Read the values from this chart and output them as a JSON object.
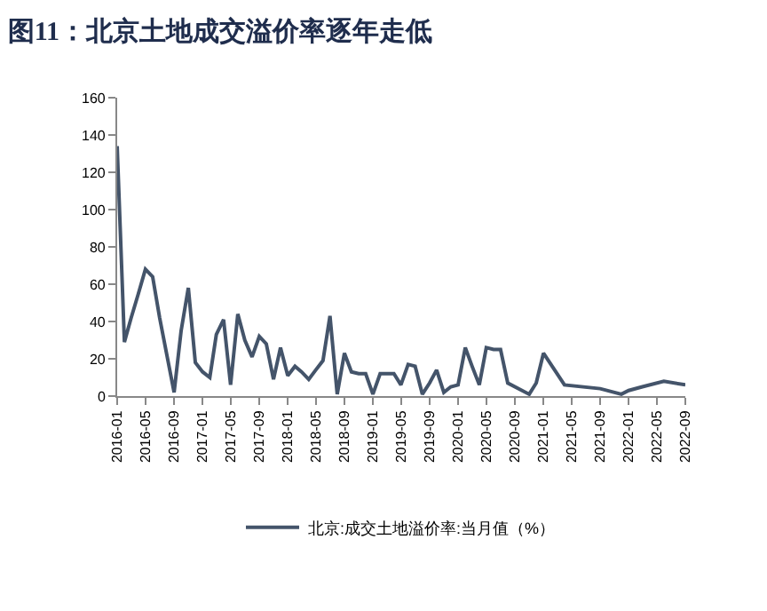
{
  "chart_data": {
    "type": "line",
    "title": "图11：北京土地成交溢价率逐年走低",
    "x": [
      "2016-01",
      "2016-02",
      "2016-03",
      "2016-04",
      "2016-05",
      "2016-06",
      "2016-07",
      "2016-08",
      "2016-09",
      "2016-10",
      "2016-11",
      "2016-12",
      "2017-01",
      "2017-02",
      "2017-03",
      "2017-04",
      "2017-05",
      "2017-06",
      "2017-07",
      "2017-08",
      "2017-09",
      "2017-10",
      "2017-11",
      "2017-12",
      "2018-01",
      "2018-02",
      "2018-03",
      "2018-04",
      "2018-05",
      "2018-06",
      "2018-07",
      "2018-08",
      "2018-09",
      "2018-10",
      "2018-11",
      "2018-12",
      "2019-01",
      "2019-02",
      "2019-03",
      "2019-04",
      "2019-05",
      "2019-06",
      "2019-07",
      "2019-08",
      "2019-09",
      "2019-10",
      "2019-11",
      "2019-12",
      "2020-01",
      "2020-02",
      "2020-03",
      "2020-04",
      "2020-05",
      "2020-06",
      "2020-07",
      "2020-08",
      "2020-11",
      "2020-12",
      "2021-01",
      "2021-04",
      "2021-09",
      "2021-12",
      "2022-01",
      "2022-03",
      "2022-06",
      "2022-09"
    ],
    "series": [
      {
        "name": "北京:成交土地溢价率:当月值（%）",
        "color": "#44546a",
        "values": [
          134,
          29,
          42,
          55,
          68,
          64,
          42,
          22,
          2,
          35,
          58,
          18,
          13,
          10,
          33,
          41,
          6,
          44,
          30,
          21,
          32,
          28,
          9,
          26,
          11,
          16,
          13,
          9,
          14,
          19,
          43,
          1,
          23,
          13,
          12,
          12,
          1,
          12,
          12,
          12,
          6,
          17,
          16,
          1,
          7,
          14,
          2,
          5,
          6,
          26,
          16,
          6,
          26,
          25,
          25,
          7,
          1,
          7,
          23,
          6,
          4,
          1,
          3,
          5,
          8,
          6
        ]
      }
    ],
    "xlim": [
      "2016-01",
      "2022-09"
    ],
    "xticks": [
      "2016-01",
      "2016-05",
      "2016-09",
      "2017-01",
      "2017-05",
      "2017-09",
      "2018-01",
      "2018-05",
      "2018-09",
      "2019-01",
      "2019-05",
      "2019-09",
      "2020-01",
      "2020-05",
      "2020-09",
      "2021-01",
      "2021-05",
      "2021-09",
      "2022-01",
      "2022-05",
      "2022-09"
    ],
    "ylim": [
      0,
      160
    ],
    "yticks": [
      0,
      20,
      40,
      60,
      80,
      100,
      120,
      140,
      160
    ],
    "legend": "bottom",
    "marker": "none",
    "line_style": "solid"
  }
}
